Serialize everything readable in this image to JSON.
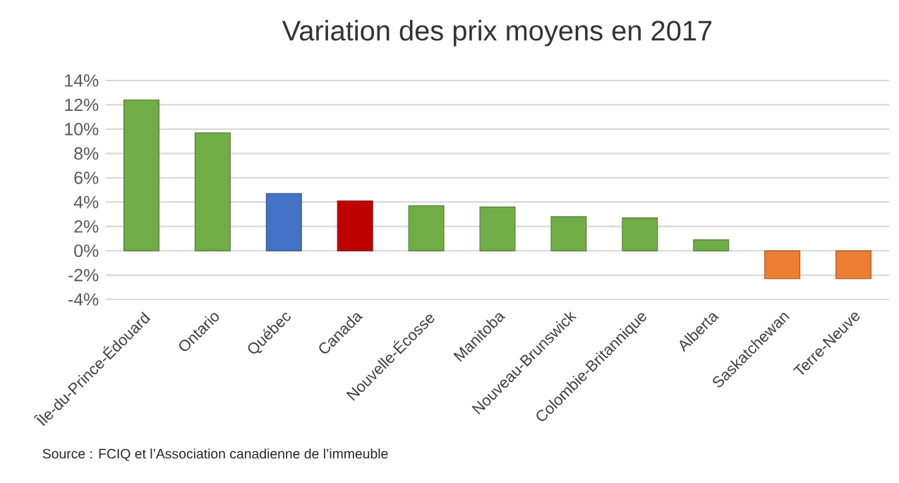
{
  "chart_data": {
    "type": "bar",
    "title": "Variation des prix moyens en 2017",
    "categories": [
      "Île-du-Prince-Édouard",
      "Ontario",
      "Québec",
      "Canada",
      "Nouvelle-Écosse",
      "Manitoba",
      "Nouveau-Brunswick",
      "Colombie-Britannique",
      "Alberta",
      "Saskatchewan",
      "Terre-Neuve"
    ],
    "values": [
      12.4,
      9.7,
      4.7,
      4.1,
      3.7,
      3.6,
      2.8,
      2.7,
      0.9,
      -2.3,
      -2.3
    ],
    "colors": [
      "#70ad47",
      "#70ad47",
      "#4472c4",
      "#c00000",
      "#70ad47",
      "#70ad47",
      "#70ad47",
      "#70ad47",
      "#70ad47",
      "#ed7d31",
      "#ed7d31"
    ],
    "ylim": [
      -4,
      14
    ],
    "yticks": [
      {
        "value": -4,
        "label": "-4%"
      },
      {
        "value": -2,
        "label": "-2%"
      },
      {
        "value": 0,
        "label": "0%"
      },
      {
        "value": 2,
        "label": "2%"
      },
      {
        "value": 4,
        "label": "4%"
      },
      {
        "value": 6,
        "label": "6%"
      },
      {
        "value": 8,
        "label": "8%"
      },
      {
        "value": 10,
        "label": "10%"
      },
      {
        "value": 12,
        "label": "12%"
      },
      {
        "value": 14,
        "label": "14%"
      }
    ],
    "grid": "y",
    "annotations": [
      "Source : FCIQ et l’Association canadienne de l’immeuble"
    ]
  }
}
